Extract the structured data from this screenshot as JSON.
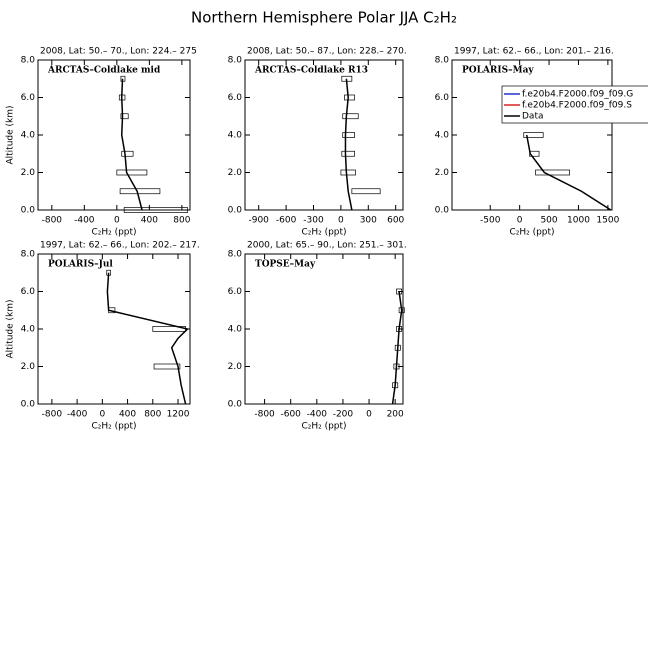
{
  "title": "Northern Hemisphere Polar JJA C₂H₂",
  "chart_data": [
    {
      "type": "line",
      "title": "2008, Lat:  50.– 70., Lon: 224.– 275",
      "label": "ARCTAS–Coldlake mid",
      "xlabel": "C₂H₂ (ppt)",
      "ylabel": "Altitude (km)",
      "xlim": [
        -970,
        900
      ],
      "xticks": [
        -800,
        -400,
        0,
        400,
        800
      ],
      "ylim": [
        0,
        8
      ],
      "yticks": [
        {
          "value": 0,
          "label": "0.0"
        },
        {
          "value": 2,
          "label": "2.0"
        },
        {
          "value": 4,
          "label": "4.0"
        },
        {
          "value": 6,
          "label": "6.0"
        },
        {
          "value": 8,
          "label": "8.0"
        }
      ],
      "y": [
        0,
        1,
        2,
        3,
        4,
        5,
        6,
        7
      ],
      "series": [
        {
          "color": "#000000",
          "values": [
            310,
            250,
            120,
            100,
            60,
            70,
            60,
            70
          ]
        }
      ],
      "boxes": {
        "y": [
          0,
          1,
          2,
          3,
          5,
          6,
          7
        ],
        "low": [
          90,
          40,
          0,
          60,
          50,
          30,
          50
        ],
        "high": [
          870,
          530,
          370,
          200,
          140,
          100,
          100
        ]
      }
    },
    {
      "type": "line",
      "title": "2008, Lat:  50.– 87., Lon: 228.– 270.",
      "label": "ARCTAS–Coldlake R13",
      "xlabel": "C₂H₂ (ppt)",
      "xlim": [
        -1050,
        680
      ],
      "xticks": [
        -900,
        -600,
        -300,
        0,
        300,
        600
      ],
      "ylim": [
        0,
        8
      ],
      "yticks": [
        {
          "value": 0,
          "label": "0.0"
        },
        {
          "value": 2,
          "label": "2.0"
        },
        {
          "value": 4,
          "label": "4.0"
        },
        {
          "value": 6,
          "label": "6.0"
        },
        {
          "value": 8,
          "label": "8.0"
        }
      ],
      "y": [
        0,
        1,
        2,
        3,
        4,
        5,
        6,
        7
      ],
      "series": [
        {
          "color": "#000000",
          "values": [
            120,
            80,
            60,
            50,
            50,
            60,
            80,
            60
          ]
        }
      ],
      "boxes": {
        "y": [
          1,
          2,
          3,
          4,
          5,
          6,
          7
        ],
        "low": [
          120,
          0,
          10,
          20,
          20,
          40,
          10
        ],
        "high": [
          430,
          160,
          150,
          150,
          190,
          150,
          120
        ]
      }
    },
    {
      "type": "line",
      "title": "1997, Lat: 62.– 66., Lon: 201.– 216.",
      "label": "POLARIS–May",
      "xlabel": "C₂H₂ (ppt)",
      "xlim": [
        -1150,
        1570
      ],
      "xticks": [
        -500,
        0,
        500,
        1000,
        1500
      ],
      "ylim": [
        0,
        8
      ],
      "yticks": [
        {
          "value": 0,
          "label": "0.0"
        },
        {
          "value": 2,
          "label": "2.0"
        },
        {
          "value": 4,
          "label": "4.0"
        },
        {
          "value": 6,
          "label": "6.0"
        },
        {
          "value": 8,
          "label": "8.0"
        }
      ],
      "y": [
        0,
        1,
        2,
        3,
        4
      ],
      "series": [
        {
          "color": "#000000",
          "values": [
            1550,
            1050,
            420,
            180,
            120
          ]
        }
      ],
      "boxes": {
        "y": [
          2,
          3,
          4
        ],
        "low": [
          270,
          170,
          70
        ],
        "high": [
          850,
          330,
          400
        ]
      },
      "legend": [
        {
          "name": "f.e20b4.F2000.f09_f09.G",
          "color": "#2233cc"
        },
        {
          "name": "f.e20b4.F2000.f09_f09.S",
          "color": "#dd2222"
        },
        {
          "name": "Data",
          "color": "#000000"
        }
      ]
    },
    {
      "type": "line",
      "title": "1997, Lat: 62.– 66., Lon: 202.– 217.",
      "label": "POLARIS–Jul",
      "xlabel": "C₂H₂ (ppt)",
      "ylabel": "Altitude (km)",
      "xlim": [
        -1020,
        1390
      ],
      "xticks": [
        -800,
        -400,
        0,
        400,
        800,
        1200
      ],
      "ylim": [
        0,
        8
      ],
      "yticks": [
        {
          "value": 0,
          "label": "0.0"
        },
        {
          "value": 2,
          "label": "2.0"
        },
        {
          "value": 4,
          "label": "4.0"
        },
        {
          "value": 6,
          "label": "6.0"
        },
        {
          "value": 8,
          "label": "8.0"
        }
      ],
      "y": [
        0,
        1,
        2,
        3,
        3.5,
        4,
        5,
        6,
        7
      ],
      "series": [
        {
          "color": "#000000",
          "values": [
            1320,
            1250,
            1200,
            1100,
            1200,
            1350,
            100,
            80,
            100
          ]
        }
      ],
      "boxes": {
        "y": [
          2,
          4,
          5,
          7
        ],
        "low": [
          820,
          800,
          100,
          70
        ],
        "high": [
          1230,
          1320,
          200,
          130
        ]
      }
    },
    {
      "type": "line",
      "title": "2000, Lat: 65.– 90., Lon: 251.– 301.",
      "label": "TOPSE–May",
      "xlabel": "C₂H₂ (ppt)",
      "xlim": [
        -950,
        260
      ],
      "xticks": [
        -800,
        -600,
        -400,
        -200,
        0,
        200
      ],
      "ylim": [
        0,
        8
      ],
      "yticks": [
        {
          "value": 0,
          "label": "0.0"
        },
        {
          "value": 2,
          "label": "2.0"
        },
        {
          "value": 4,
          "label": "4.0"
        },
        {
          "value": 6,
          "label": "6.0"
        },
        {
          "value": 8,
          "label": "8.0"
        }
      ],
      "y": [
        0,
        1,
        2,
        3,
        4,
        5,
        6
      ],
      "series": [
        {
          "color": "#000000",
          "values": [
            180,
            200,
            210,
            220,
            230,
            250,
            230
          ]
        }
      ],
      "boxes": {
        "y": [
          1,
          2,
          3,
          4,
          5,
          6
        ],
        "low": [
          180,
          190,
          200,
          210,
          230,
          210
        ],
        "high": [
          220,
          230,
          240,
          250,
          270,
          250
        ]
      }
    }
  ]
}
